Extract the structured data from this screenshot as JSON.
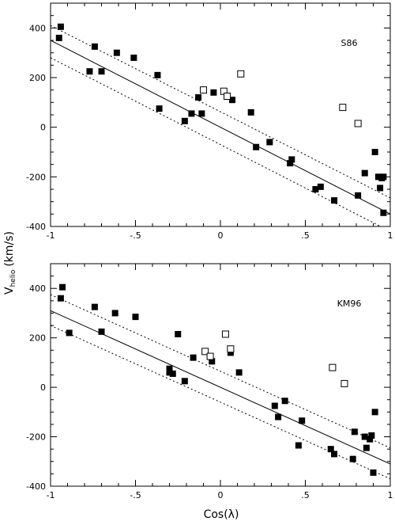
{
  "chart_data": [
    {
      "type": "scatter",
      "panel_label": "S86",
      "legend_position": "top-right",
      "xlim": [
        -1,
        1
      ],
      "ylim": [
        -400,
        500
      ],
      "xticks": [
        -1,
        -0.5,
        0,
        0.5,
        1
      ],
      "xtick_labels": [
        "-1",
        "-.5",
        "0",
        ".5",
        "1"
      ],
      "yticks": [
        -400,
        -200,
        0,
        200,
        400
      ],
      "ytick_labels": [
        "-400",
        "-200",
        "0",
        "200",
        "400"
      ],
      "grid": false,
      "lines": [
        {
          "style": "solid",
          "x": [
            -1,
            1
          ],
          "y": [
            350,
            -350
          ]
        },
        {
          "style": "dotted",
          "x": [
            -1,
            1
          ],
          "y": [
            410,
            -285
          ]
        },
        {
          "style": "dotted",
          "x": [
            -1,
            1
          ],
          "y": [
            280,
            -420
          ]
        }
      ],
      "series": [
        {
          "marker": "filled-square",
          "points": [
            [
              -0.94,
              405
            ],
            [
              -0.95,
              360
            ],
            [
              -0.77,
              225
            ],
            [
              -0.74,
              325
            ],
            [
              -0.7,
              225
            ],
            [
              -0.61,
              300
            ],
            [
              -0.51,
              280
            ],
            [
              -0.37,
              210
            ],
            [
              -0.36,
              75
            ],
            [
              -0.21,
              25
            ],
            [
              -0.17,
              55
            ],
            [
              -0.13,
              120
            ],
            [
              -0.11,
              55
            ],
            [
              -0.04,
              140
            ],
            [
              0.07,
              110
            ],
            [
              0.18,
              60
            ],
            [
              0.21,
              -80
            ],
            [
              0.29,
              -60
            ],
            [
              0.41,
              -145
            ],
            [
              0.42,
              -130
            ],
            [
              0.56,
              -250
            ],
            [
              0.59,
              -240
            ],
            [
              0.67,
              -295
            ],
            [
              0.81,
              -275
            ],
            [
              0.85,
              -185
            ],
            [
              0.91,
              -100
            ],
            [
              0.93,
              -200
            ],
            [
              0.94,
              -245
            ],
            [
              0.95,
              -205
            ],
            [
              0.96,
              -345
            ],
            [
              0.96,
              -200
            ]
          ]
        },
        {
          "marker": "open-square",
          "points": [
            [
              -0.1,
              150
            ],
            [
              0.02,
              145
            ],
            [
              0.04,
              125
            ],
            [
              0.12,
              215
            ],
            [
              0.72,
              80
            ],
            [
              0.81,
              15
            ]
          ]
        }
      ]
    },
    {
      "type": "scatter",
      "panel_label": "KM96",
      "legend_position": "top-right",
      "xlim": [
        -1,
        1
      ],
      "ylim": [
        -400,
        500
      ],
      "xticks": [
        -1,
        -0.5,
        0,
        0.5,
        1
      ],
      "xtick_labels": [
        "-1",
        "-.5",
        "0",
        ".5",
        "1"
      ],
      "yticks": [
        -400,
        -200,
        0,
        200,
        400
      ],
      "ytick_labels": [
        "-400",
        "-200",
        "0",
        "200",
        "400"
      ],
      "grid": false,
      "lines": [
        {
          "style": "solid",
          "x": [
            -1,
            1
          ],
          "y": [
            310,
            -310
          ]
        },
        {
          "style": "dotted",
          "x": [
            -1,
            1
          ],
          "y": [
            375,
            -245
          ]
        },
        {
          "style": "dotted",
          "x": [
            -1,
            1
          ],
          "y": [
            250,
            -370
          ]
        }
      ],
      "series": [
        {
          "marker": "filled-square",
          "points": [
            [
              -0.93,
              405
            ],
            [
              -0.94,
              360
            ],
            [
              -0.89,
              220
            ],
            [
              -0.74,
              325
            ],
            [
              -0.7,
              225
            ],
            [
              -0.62,
              300
            ],
            [
              -0.5,
              285
            ],
            [
              -0.3,
              75
            ],
            [
              -0.3,
              60
            ],
            [
              -0.28,
              55
            ],
            [
              -0.25,
              215
            ],
            [
              -0.21,
              25
            ],
            [
              -0.16,
              120
            ],
            [
              -0.05,
              105
            ],
            [
              0.06,
              140
            ],
            [
              0.11,
              60
            ],
            [
              0.32,
              -75
            ],
            [
              0.34,
              -120
            ],
            [
              0.38,
              -55
            ],
            [
              0.46,
              -235
            ],
            [
              0.48,
              -135
            ],
            [
              0.65,
              -250
            ],
            [
              0.67,
              -270
            ],
            [
              0.78,
              -290
            ],
            [
              0.79,
              -180
            ],
            [
              0.85,
              -200
            ],
            [
              0.86,
              -245
            ],
            [
              0.88,
              -210
            ],
            [
              0.89,
              -195
            ],
            [
              0.9,
              -345
            ],
            [
              0.91,
              -100
            ]
          ]
        },
        {
          "marker": "open-square",
          "points": [
            [
              -0.09,
              145
            ],
            [
              -0.06,
              125
            ],
            [
              0.03,
              215
            ],
            [
              0.06,
              155
            ],
            [
              0.66,
              80
            ],
            [
              0.73,
              15
            ]
          ]
        }
      ]
    }
  ],
  "ylabel": "V",
  "ylabel_subscript": "helio",
  "ylabel_units": "(km/s)",
  "xlabel": "Cos(λ)"
}
